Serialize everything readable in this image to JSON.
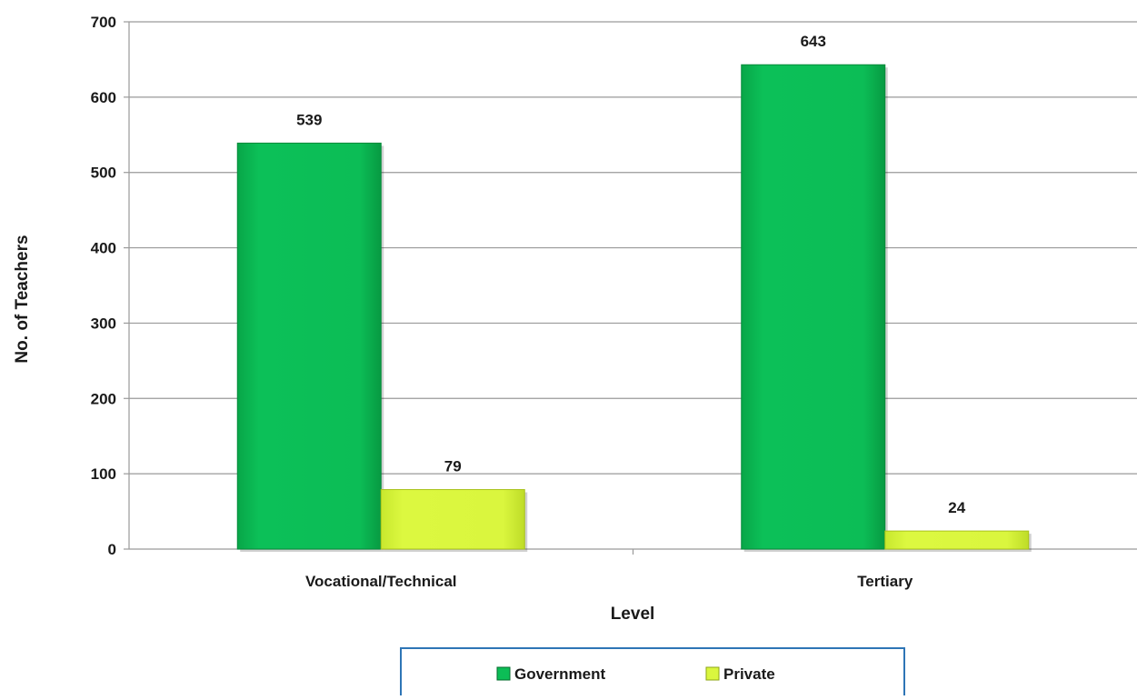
{
  "chart_data": {
    "type": "bar",
    "categories": [
      "Vocational/Technical",
      "Tertiary"
    ],
    "series": [
      {
        "name": "Government",
        "values": [
          539,
          643
        ]
      },
      {
        "name": "Private",
        "values": [
          79,
          24
        ]
      }
    ],
    "title": "",
    "xlabel": "Level",
    "ylabel": "No. of Teachers",
    "ylim": [
      0,
      700
    ],
    "yticks": [
      0,
      100,
      200,
      300,
      400,
      500,
      600,
      700
    ],
    "grid": true,
    "legend_position": "bottom",
    "colors": {
      "Government": "#0db954",
      "Government_dark": "#058a3a",
      "Private": "#d6f53a",
      "Private_dark": "#a8c21a",
      "gridline": "#9a9a9a",
      "legend_border": "#2e75b6"
    }
  }
}
